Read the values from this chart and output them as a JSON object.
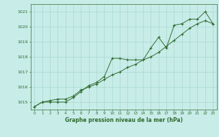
{
  "series1_x": [
    0,
    1,
    2,
    3,
    4,
    5,
    6,
    7,
    8,
    9,
    10,
    11,
    12,
    13,
    14,
    15,
    16,
    17,
    18,
    19,
    20,
    21,
    22,
    23
  ],
  "series1_y": [
    1014.7,
    1015.0,
    1015.0,
    1015.0,
    1015.0,
    1015.3,
    1015.7,
    1016.1,
    1016.3,
    1016.7,
    1017.9,
    1017.9,
    1017.8,
    1017.8,
    1017.8,
    1018.6,
    1019.3,
    1018.6,
    1020.1,
    1020.2,
    1020.5,
    1020.5,
    1021.0,
    1020.2
  ],
  "series2_x": [
    0,
    1,
    2,
    3,
    4,
    5,
    6,
    7,
    8,
    9,
    10,
    11,
    12,
    13,
    14,
    15,
    16,
    17,
    18,
    19,
    20,
    21,
    22,
    23
  ],
  "series2_y": [
    1014.7,
    1015.0,
    1015.1,
    1015.2,
    1015.2,
    1015.4,
    1015.8,
    1016.0,
    1016.2,
    1016.5,
    1016.8,
    1017.0,
    1017.3,
    1017.5,
    1017.8,
    1018.0,
    1018.3,
    1018.7,
    1019.1,
    1019.5,
    1019.9,
    1020.2,
    1020.4,
    1020.2
  ],
  "line_color": "#2d6a2d",
  "bg_color": "#c8ece8",
  "grid_color": "#a8d8d0",
  "xlabel": "Graphe pression niveau de la mer (hPa)",
  "ylim": [
    1014.5,
    1021.5
  ],
  "xlim": [
    -0.5,
    23.5
  ],
  "yticks": [
    1015,
    1016,
    1017,
    1018,
    1019,
    1020,
    1021
  ],
  "xticks": [
    0,
    1,
    2,
    3,
    4,
    5,
    6,
    7,
    8,
    9,
    10,
    11,
    12,
    13,
    14,
    15,
    16,
    17,
    18,
    19,
    20,
    21,
    22,
    23
  ]
}
